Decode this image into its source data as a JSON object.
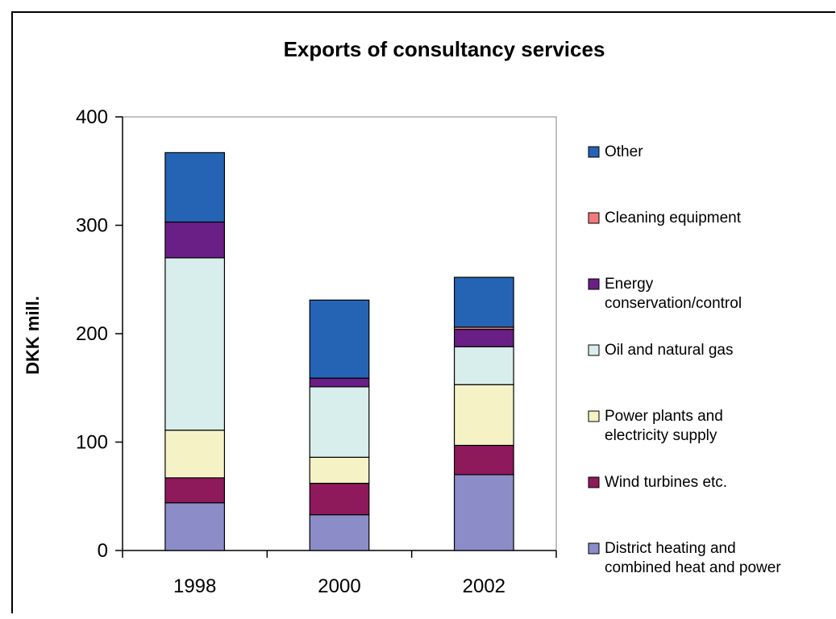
{
  "chart_data": {
    "type": "bar",
    "stacked": true,
    "title": "Exports of consultancy services",
    "xlabel": "",
    "ylabel": "DKK mill.",
    "ylim": [
      0,
      400
    ],
    "yticks": [
      0,
      100,
      200,
      300,
      400
    ],
    "grid": false,
    "legend_position": "right",
    "categories": [
      "1998",
      "2000",
      "2002"
    ],
    "series": [
      {
        "name": "District heating and combined heat and power",
        "color": "#8c8cc8",
        "values": [
          44,
          33,
          70
        ]
      },
      {
        "name": "Wind turbines etc.",
        "color": "#8e1a5c",
        "values": [
          23,
          29,
          27
        ]
      },
      {
        "name": "Power plants and electricity supply",
        "color": "#f5f3c6",
        "values": [
          44,
          24,
          56
        ]
      },
      {
        "name": "Oil and natural gas",
        "color": "#d8eeec",
        "values": [
          159,
          65,
          35
        ]
      },
      {
        "name": "Energy conservation/control",
        "color": "#6a1f86",
        "values": [
          33,
          8,
          16
        ]
      },
      {
        "name": "Cleaning equipment",
        "color": "#f47a7a",
        "values": [
          0,
          0,
          2
        ]
      },
      {
        "name": "Other",
        "color": "#2564b4",
        "values": [
          64,
          72,
          46
        ]
      }
    ]
  }
}
